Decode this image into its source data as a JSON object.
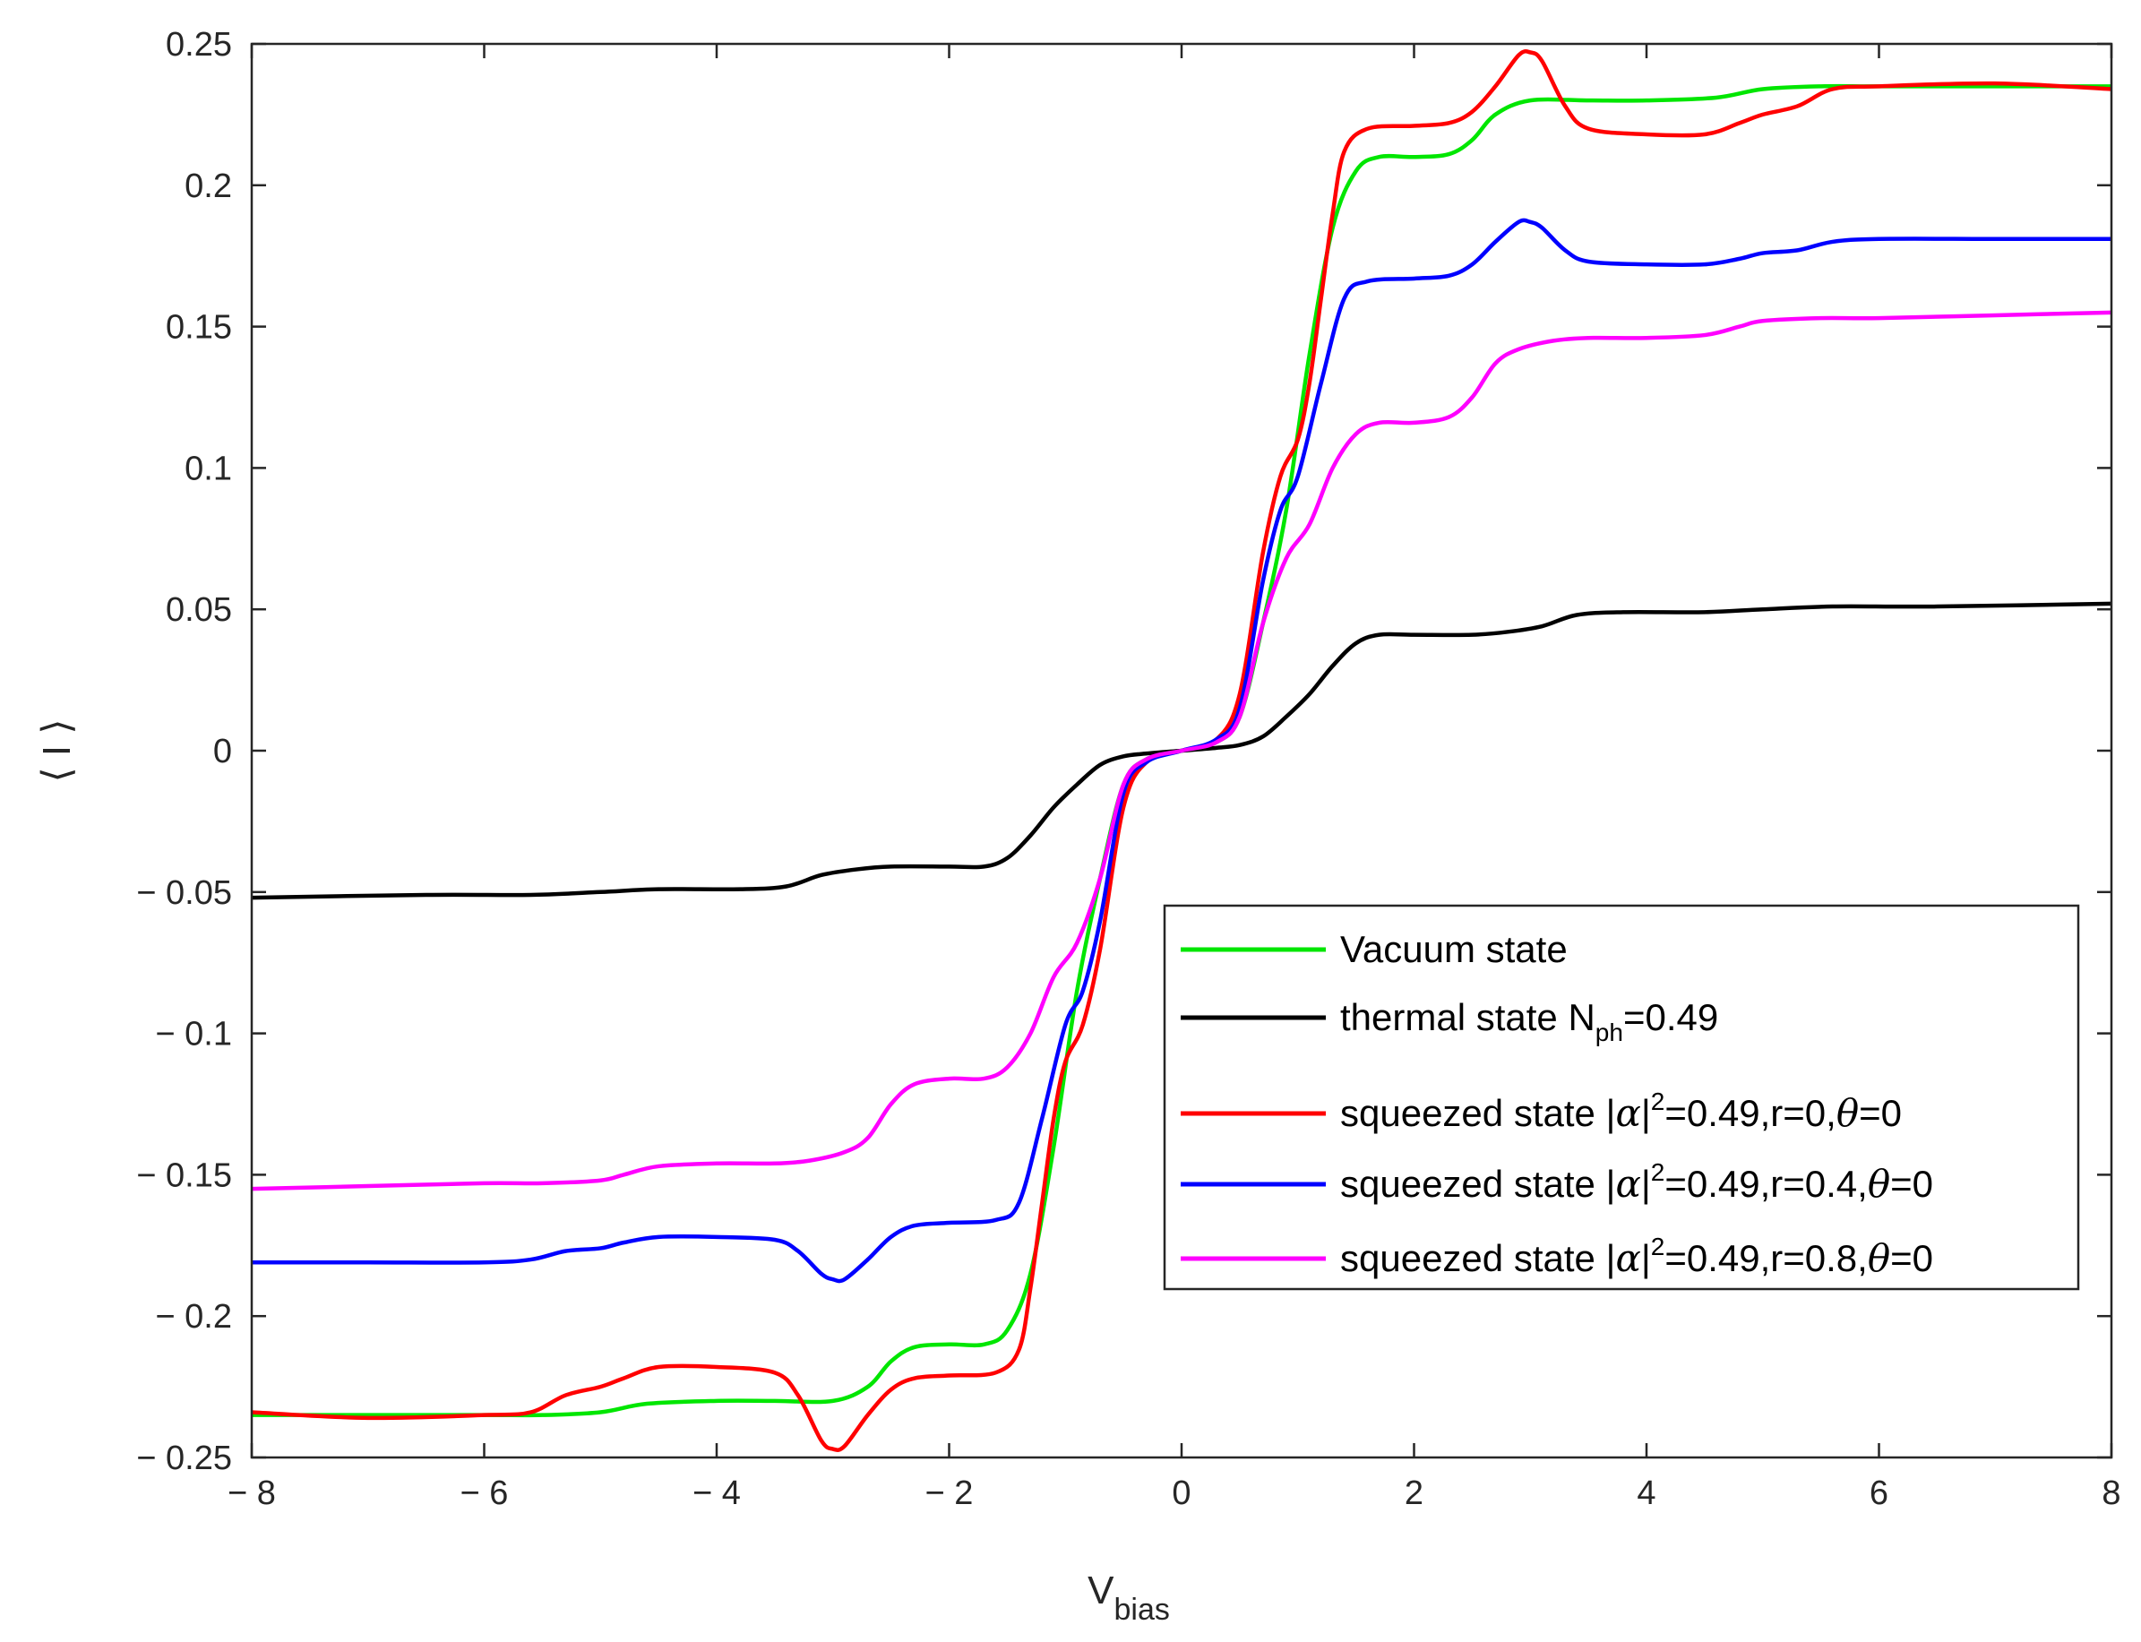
{
  "chart_data": {
    "type": "line",
    "title": "",
    "xlabel": {
      "main": "V",
      "sub": "bias"
    },
    "ylabel": "⟨ I ⟩",
    "xlim": [
      -8,
      8
    ],
    "ylim": [
      -0.25,
      0.25
    ],
    "xticks": [
      -8,
      -6,
      -4,
      -2,
      0,
      2,
      4,
      6,
      8
    ],
    "xtick_labels": [
      "− 8",
      "− 6",
      "− 4",
      "− 2",
      "0",
      "2",
      "4",
      "6",
      "8"
    ],
    "yticks": [
      -0.25,
      -0.2,
      -0.15,
      -0.1,
      -0.05,
      0,
      0.05,
      0.1,
      0.15,
      0.2,
      0.25
    ],
    "ytick_labels": [
      "− 0.25",
      "− 0.2",
      "− 0.15",
      "− 0.1",
      "− 0.05",
      "0",
      "0.05",
      "0.1",
      "0.15",
      "0.2",
      "0.25"
    ],
    "grid": false,
    "legend_position": "lower-right",
    "series": [
      {
        "name": "Vacuum state",
        "color": "#00e600",
        "points": [
          [
            0,
            0
          ],
          [
            0.3,
            0.003
          ],
          [
            0.5,
            0.012
          ],
          [
            0.7,
            0.045
          ],
          [
            0.9,
            0.085
          ],
          [
            1.1,
            0.14
          ],
          [
            1.3,
            0.185
          ],
          [
            1.5,
            0.205
          ],
          [
            1.7,
            0.21
          ],
          [
            2.0,
            0.21
          ],
          [
            2.3,
            0.211
          ],
          [
            2.5,
            0.216
          ],
          [
            2.7,
            0.225
          ],
          [
            3.0,
            0.23
          ],
          [
            3.5,
            0.23
          ],
          [
            4.0,
            0.23
          ],
          [
            4.6,
            0.231
          ],
          [
            5.0,
            0.234
          ],
          [
            5.5,
            0.235
          ],
          [
            6.0,
            0.235
          ],
          [
            7.0,
            0.235
          ],
          [
            8.0,
            0.235
          ]
        ]
      },
      {
        "name": "thermal state N_ph=0.49",
        "label_parts": [
          "thermal state N",
          "ph",
          "=0.49"
        ],
        "color": "#000000",
        "points": [
          [
            0,
            0
          ],
          [
            0.3,
            0.001
          ],
          [
            0.5,
            0.002
          ],
          [
            0.7,
            0.005
          ],
          [
            0.9,
            0.012
          ],
          [
            1.1,
            0.02
          ],
          [
            1.3,
            0.03
          ],
          [
            1.5,
            0.038
          ],
          [
            1.7,
            0.041
          ],
          [
            2.0,
            0.041
          ],
          [
            2.5,
            0.041
          ],
          [
            2.8,
            0.042
          ],
          [
            3.1,
            0.044
          ],
          [
            3.4,
            0.048
          ],
          [
            3.8,
            0.049
          ],
          [
            4.5,
            0.049
          ],
          [
            5.0,
            0.05
          ],
          [
            5.6,
            0.051
          ],
          [
            6.5,
            0.051
          ],
          [
            8.0,
            0.052
          ]
        ]
      },
      {
        "name": "squeezed state |α|^2=0.49,r=0,θ=0",
        "label_parts": [
          "squeezed state |",
          "α",
          "|",
          "2",
          "=0.49,r=0,",
          "θ",
          "=0"
        ],
        "color": "#ff0000",
        "points": [
          [
            0,
            0
          ],
          [
            0.3,
            0.004
          ],
          [
            0.5,
            0.02
          ],
          [
            0.7,
            0.07
          ],
          [
            0.85,
            0.097
          ],
          [
            1.0,
            0.11
          ],
          [
            1.1,
            0.13
          ],
          [
            1.2,
            0.16
          ],
          [
            1.3,
            0.19
          ],
          [
            1.4,
            0.212
          ],
          [
            1.6,
            0.22
          ],
          [
            2.0,
            0.221
          ],
          [
            2.3,
            0.222
          ],
          [
            2.5,
            0.226
          ],
          [
            2.7,
            0.235
          ],
          [
            2.9,
            0.246
          ],
          [
            3.0,
            0.247
          ],
          [
            3.1,
            0.244
          ],
          [
            3.3,
            0.228
          ],
          [
            3.5,
            0.22
          ],
          [
            4.0,
            0.218
          ],
          [
            4.5,
            0.218
          ],
          [
            4.8,
            0.222
          ],
          [
            5.0,
            0.225
          ],
          [
            5.3,
            0.228
          ],
          [
            5.6,
            0.234
          ],
          [
            6.0,
            0.235
          ],
          [
            7.0,
            0.236
          ],
          [
            8.0,
            0.234
          ]
        ]
      },
      {
        "name": "squeezed state |α|^2=0.49,r=0.4,θ=0",
        "label_parts": [
          "squeezed state |",
          "α",
          "|",
          "2",
          "=0.49,r=0.4,",
          "θ",
          "=0"
        ],
        "color": "#0000ff",
        "points": [
          [
            0,
            0
          ],
          [
            0.3,
            0.004
          ],
          [
            0.5,
            0.015
          ],
          [
            0.7,
            0.06
          ],
          [
            0.85,
            0.085
          ],
          [
            1.0,
            0.097
          ],
          [
            1.2,
            0.13
          ],
          [
            1.4,
            0.16
          ],
          [
            1.6,
            0.166
          ],
          [
            2.0,
            0.167
          ],
          [
            2.3,
            0.168
          ],
          [
            2.5,
            0.172
          ],
          [
            2.7,
            0.18
          ],
          [
            2.9,
            0.187
          ],
          [
            3.0,
            0.187
          ],
          [
            3.1,
            0.185
          ],
          [
            3.3,
            0.177
          ],
          [
            3.5,
            0.173
          ],
          [
            4.0,
            0.172
          ],
          [
            4.5,
            0.172
          ],
          [
            4.8,
            0.174
          ],
          [
            5.0,
            0.176
          ],
          [
            5.3,
            0.177
          ],
          [
            5.6,
            0.18
          ],
          [
            6.0,
            0.181
          ],
          [
            7.0,
            0.181
          ],
          [
            8.0,
            0.181
          ]
        ]
      },
      {
        "name": "squeezed state |α|^2=0.49,r=0.8,θ=0",
        "label_parts": [
          "squeezed state |",
          "α",
          "|",
          "2",
          "=0.49,r=0.8,",
          "θ",
          "=0"
        ],
        "color": "#ff00ff",
        "points": [
          [
            0,
            0
          ],
          [
            0.3,
            0.003
          ],
          [
            0.5,
            0.012
          ],
          [
            0.7,
            0.045
          ],
          [
            0.9,
            0.068
          ],
          [
            1.1,
            0.08
          ],
          [
            1.3,
            0.1
          ],
          [
            1.5,
            0.112
          ],
          [
            1.7,
            0.116
          ],
          [
            2.0,
            0.116
          ],
          [
            2.3,
            0.118
          ],
          [
            2.5,
            0.125
          ],
          [
            2.7,
            0.137
          ],
          [
            2.9,
            0.142
          ],
          [
            3.2,
            0.145
          ],
          [
            3.5,
            0.146
          ],
          [
            4.0,
            0.146
          ],
          [
            4.5,
            0.147
          ],
          [
            4.8,
            0.15
          ],
          [
            5.0,
            0.152
          ],
          [
            5.5,
            0.153
          ],
          [
            6.0,
            0.153
          ],
          [
            7.0,
            0.154
          ],
          [
            8.0,
            0.155
          ]
        ]
      }
    ]
  }
}
